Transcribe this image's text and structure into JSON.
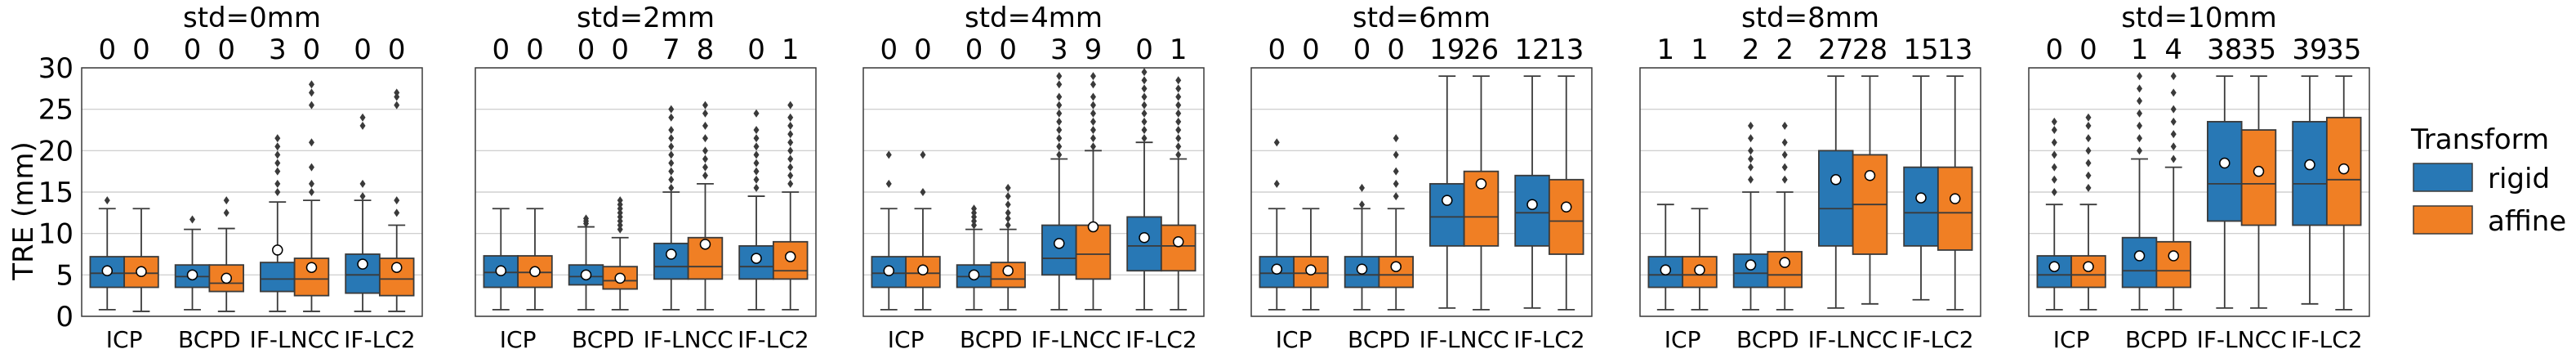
{
  "chart_data": {
    "type": "box",
    "ylabel": "TRE (mm)",
    "ylim": [
      0,
      30
    ],
    "yticks": [
      0,
      5,
      10,
      15,
      20,
      25,
      30
    ],
    "grid": "horizontal",
    "categories": [
      "ICP",
      "BCPD",
      "IF-LNCC",
      "IF-LC2"
    ],
    "legend": {
      "title": "Transform",
      "position": "right",
      "entries": [
        {
          "name": "rigid",
          "color": "#2878b5"
        },
        {
          "name": "affine",
          "color": "#f07f24"
        }
      ]
    },
    "panels": [
      {
        "title": "std=0mm",
        "outlier_counts": [
          "0",
          "0",
          "0",
          "0",
          "3",
          "0",
          "0",
          "0"
        ],
        "boxes": [
          {
            "q1": 3.5,
            "med": 5.2,
            "q3": 7.2,
            "wlo": 0.8,
            "whi": 13.0,
            "mean": 5.5,
            "fl": [
              14.0
            ]
          },
          {
            "q1": 3.5,
            "med": 5.2,
            "q3": 7.2,
            "wlo": 0.6,
            "whi": 13.0,
            "mean": 5.4,
            "fl": []
          },
          {
            "q1": 3.5,
            "med": 4.8,
            "q3": 6.2,
            "wlo": 0.8,
            "whi": 10.5,
            "mean": 5.0,
            "fl": [
              11.7
            ]
          },
          {
            "q1": 3.0,
            "med": 4.0,
            "q3": 6.2,
            "wlo": 0.6,
            "whi": 10.6,
            "mean": 4.6,
            "fl": [
              12.5,
              14.0
            ]
          },
          {
            "q1": 3.0,
            "med": 4.5,
            "q3": 6.5,
            "wlo": 0.6,
            "whi": 13.8,
            "mean": 8.0,
            "fl": [
              15.0,
              16.0,
              17.5,
              18.5,
              19.5,
              20.5,
              21.5
            ]
          },
          {
            "q1": 2.5,
            "med": 4.5,
            "q3": 7.0,
            "wlo": 0.6,
            "whi": 14.0,
            "mean": 5.9,
            "fl": [
              15.0,
              16.0,
              18.0,
              21.0,
              25.5,
              27.0,
              28.0
            ]
          },
          {
            "q1": 2.8,
            "med": 5.0,
            "q3": 7.5,
            "wlo": 0.6,
            "whi": 14.0,
            "mean": 6.3,
            "fl": [
              14.5,
              16.0,
              23.0,
              24.0
            ]
          },
          {
            "q1": 2.5,
            "med": 4.5,
            "q3": 7.0,
            "wlo": 0.6,
            "whi": 11.0,
            "mean": 5.9,
            "fl": [
              12.5,
              14.0,
              25.5,
              26.5,
              27.0
            ]
          }
        ]
      },
      {
        "title": "std=2mm",
        "outlier_counts": [
          "0",
          "0",
          "0",
          "0",
          "7",
          "8",
          "0",
          "1"
        ],
        "boxes": [
          {
            "q1": 3.5,
            "med": 5.3,
            "q3": 7.3,
            "wlo": 0.8,
            "whi": 13.0,
            "mean": 5.5,
            "fl": []
          },
          {
            "q1": 3.5,
            "med": 5.3,
            "q3": 7.3,
            "wlo": 0.8,
            "whi": 13.0,
            "mean": 5.4,
            "fl": []
          },
          {
            "q1": 3.8,
            "med": 4.8,
            "q3": 6.2,
            "wlo": 0.8,
            "whi": 10.8,
            "mean": 5.0,
            "fl": [
              11.2,
              11.5,
              11.8
            ]
          },
          {
            "q1": 3.3,
            "med": 4.3,
            "q3": 6.0,
            "wlo": 0.8,
            "whi": 9.5,
            "mean": 4.6,
            "fl": [
              10.5,
              11.0,
              11.5,
              12.0,
              12.5,
              13.0,
              13.5,
              14.0
            ]
          },
          {
            "q1": 4.5,
            "med": 6.0,
            "q3": 8.8,
            "wlo": 0.8,
            "whi": 15.0,
            "mean": 7.5,
            "fl": [
              15.5,
              16.5,
              17.5,
              18.5,
              19.5,
              20.5,
              21.5,
              22.5,
              24.0,
              25.0
            ]
          },
          {
            "q1": 4.5,
            "med": 6.0,
            "q3": 9.5,
            "wlo": 0.8,
            "whi": 16.0,
            "mean": 8.7,
            "fl": [
              17.0,
              18.0,
              19.0,
              20.0,
              21.5,
              23.0,
              24.5,
              25.5
            ]
          },
          {
            "q1": 4.5,
            "med": 6.0,
            "q3": 8.5,
            "wlo": 0.8,
            "whi": 14.5,
            "mean": 7.0,
            "fl": [
              15.5,
              16.5,
              17.5,
              18.5,
              19.5,
              20.5,
              21.5,
              22.5,
              24.5
            ]
          },
          {
            "q1": 4.5,
            "med": 5.5,
            "q3": 9.0,
            "wlo": 0.8,
            "whi": 15.0,
            "mean": 7.2,
            "fl": [
              16.0,
              17.0,
              18.0,
              19.0,
              20.0,
              21.0,
              22.0,
              23.0,
              24.0,
              25.5
            ]
          }
        ]
      },
      {
        "title": "std=4mm",
        "outlier_counts": [
          "0",
          "0",
          "0",
          "0",
          "3",
          "9",
          "0",
          "1"
        ],
        "boxes": [
          {
            "q1": 3.5,
            "med": 5.2,
            "q3": 7.2,
            "wlo": 0.8,
            "whi": 13.0,
            "mean": 5.5,
            "fl": [
              16.0,
              19.5
            ]
          },
          {
            "q1": 3.5,
            "med": 5.2,
            "q3": 7.2,
            "wlo": 0.8,
            "whi": 13.0,
            "mean": 5.6,
            "fl": [
              15.0,
              19.5
            ]
          },
          {
            "q1": 3.5,
            "med": 4.8,
            "q3": 6.2,
            "wlo": 0.8,
            "whi": 10.5,
            "mean": 5.0,
            "fl": [
              11.0,
              11.5,
              12.0,
              12.5,
              13.0
            ]
          },
          {
            "q1": 3.5,
            "med": 4.5,
            "q3": 6.5,
            "wlo": 0.8,
            "whi": 10.5,
            "mean": 5.5,
            "fl": [
              11.0,
              11.8,
              12.5,
              13.5,
              14.5,
              15.5
            ]
          },
          {
            "q1": 5.0,
            "med": 7.0,
            "q3": 11.0,
            "wlo": 0.8,
            "whi": 19.0,
            "mean": 8.8,
            "fl": [
              19.5,
              20.5,
              21.5,
              22.5,
              23.5,
              24.5,
              25.5,
              26.5,
              28.0,
              29.0
            ]
          },
          {
            "q1": 4.5,
            "med": 7.5,
            "q3": 11.0,
            "wlo": 0.8,
            "whi": 20.0,
            "mean": 10.8,
            "fl": [
              20.5,
              21.5,
              22.5,
              23.5,
              24.5,
              25.5,
              26.5,
              28.0,
              29.0
            ]
          },
          {
            "q1": 5.5,
            "med": 8.5,
            "q3": 12.0,
            "wlo": 0.8,
            "whi": 21.0,
            "mean": 9.5,
            "fl": [
              21.5,
              22.5,
              23.5,
              24.5,
              25.5,
              26.5,
              27.5,
              28.5,
              29.5
            ]
          },
          {
            "q1": 5.5,
            "med": 8.5,
            "q3": 11.0,
            "wlo": 0.8,
            "whi": 19.0,
            "mean": 9.0,
            "fl": [
              19.5,
              20.5,
              21.5,
              22.5,
              23.5,
              24.5,
              25.5,
              26.5,
              27.5,
              28.5
            ]
          }
        ]
      },
      {
        "title": "std=6mm",
        "outlier_counts": [
          "0",
          "0",
          "0",
          "0",
          "19",
          "26",
          "12",
          "13"
        ],
        "boxes": [
          {
            "q1": 3.5,
            "med": 5.2,
            "q3": 7.2,
            "wlo": 0.8,
            "whi": 13.0,
            "mean": 5.7,
            "fl": [
              16.0,
              21.0
            ]
          },
          {
            "q1": 3.5,
            "med": 5.2,
            "q3": 7.2,
            "wlo": 0.8,
            "whi": 13.0,
            "mean": 5.6,
            "fl": []
          },
          {
            "q1": 3.5,
            "med": 5.0,
            "q3": 7.2,
            "wlo": 0.8,
            "whi": 13.0,
            "mean": 5.7,
            "fl": [
              13.5,
              15.5
            ]
          },
          {
            "q1": 3.5,
            "med": 5.0,
            "q3": 7.2,
            "wlo": 0.8,
            "whi": 13.0,
            "mean": 6.0,
            "fl": [
              14.5,
              16.0,
              17.5,
              19.5,
              21.5
            ]
          },
          {
            "q1": 8.5,
            "med": 12.0,
            "q3": 16.0,
            "wlo": 1.0,
            "whi": 29.0,
            "mean": 14.0,
            "fl": []
          },
          {
            "q1": 8.5,
            "med": 12.0,
            "q3": 17.5,
            "wlo": 0.8,
            "whi": 29.0,
            "mean": 16.0,
            "fl": []
          },
          {
            "q1": 8.5,
            "med": 12.5,
            "q3": 17.0,
            "wlo": 1.0,
            "whi": 29.0,
            "mean": 13.5,
            "fl": []
          },
          {
            "q1": 7.5,
            "med": 11.5,
            "q3": 16.5,
            "wlo": 0.8,
            "whi": 29.0,
            "mean": 13.2,
            "fl": []
          }
        ]
      },
      {
        "title": "std=8mm",
        "outlier_counts": [
          "1",
          "1",
          "2",
          "2",
          "27",
          "28",
          "15",
          "13"
        ],
        "boxes": [
          {
            "q1": 3.5,
            "med": 5.0,
            "q3": 7.2,
            "wlo": 0.8,
            "whi": 13.5,
            "mean": 5.6,
            "fl": []
          },
          {
            "q1": 3.5,
            "med": 5.0,
            "q3": 7.2,
            "wlo": 0.8,
            "whi": 13.0,
            "mean": 5.6,
            "fl": []
          },
          {
            "q1": 3.5,
            "med": 5.2,
            "q3": 7.5,
            "wlo": 0.8,
            "whi": 15.0,
            "mean": 6.2,
            "fl": [
              16.5,
              18.0,
              19.0,
              20.0,
              21.5,
              23.0
            ]
          },
          {
            "q1": 3.5,
            "med": 5.0,
            "q3": 7.8,
            "wlo": 0.8,
            "whi": 15.0,
            "mean": 6.5,
            "fl": [
              16.5,
              18.0,
              19.5,
              21.0,
              23.0
            ]
          },
          {
            "q1": 8.5,
            "med": 13.0,
            "q3": 20.0,
            "wlo": 1.0,
            "whi": 29.0,
            "mean": 16.5,
            "fl": []
          },
          {
            "q1": 7.5,
            "med": 13.5,
            "q3": 19.5,
            "wlo": 1.5,
            "whi": 29.0,
            "mean": 17.0,
            "fl": []
          },
          {
            "q1": 8.5,
            "med": 12.5,
            "q3": 18.0,
            "wlo": 2.0,
            "whi": 29.0,
            "mean": 14.3,
            "fl": []
          },
          {
            "q1": 8.0,
            "med": 12.5,
            "q3": 18.0,
            "wlo": 0.8,
            "whi": 29.0,
            "mean": 14.2,
            "fl": []
          }
        ]
      },
      {
        "title": "std=10mm",
        "outlier_counts": [
          "0",
          "0",
          "1",
          "4",
          "38",
          "35",
          "39",
          "35"
        ],
        "boxes": [
          {
            "q1": 3.5,
            "med": 5.0,
            "q3": 7.3,
            "wlo": 0.8,
            "whi": 13.5,
            "mean": 6.0,
            "fl": [
              15.0,
              16.5,
              18.0,
              19.5,
              21.0,
              22.5,
              23.5
            ]
          },
          {
            "q1": 3.5,
            "med": 5.0,
            "q3": 7.3,
            "wlo": 0.8,
            "whi": 13.5,
            "mean": 6.0,
            "fl": [
              15.5,
              17.0,
              18.5,
              20.0,
              21.5,
              23.0,
              24.0
            ]
          },
          {
            "q1": 3.5,
            "med": 5.5,
            "q3": 9.5,
            "wlo": 0.8,
            "whi": 19.0,
            "mean": 7.3,
            "fl": [
              20.0,
              21.5,
              23.0,
              24.5,
              26.0,
              27.5,
              29.0
            ]
          },
          {
            "q1": 3.5,
            "med": 5.5,
            "q3": 9.0,
            "wlo": 0.8,
            "whi": 18.0,
            "mean": 7.3,
            "fl": [
              19.0,
              20.5,
              22.0,
              23.5,
              25.0,
              27.0,
              29.0
            ]
          },
          {
            "q1": 11.5,
            "med": 16.0,
            "q3": 23.5,
            "wlo": 1.0,
            "whi": 29.0,
            "mean": 18.5,
            "fl": []
          },
          {
            "q1": 11.0,
            "med": 16.0,
            "q3": 22.5,
            "wlo": 1.0,
            "whi": 29.0,
            "mean": 17.5,
            "fl": []
          },
          {
            "q1": 11.0,
            "med": 16.0,
            "q3": 23.5,
            "wlo": 1.5,
            "whi": 29.0,
            "mean": 18.3,
            "fl": []
          },
          {
            "q1": 11.0,
            "med": 16.5,
            "q3": 24.0,
            "wlo": 0.8,
            "whi": 29.0,
            "mean": 17.8,
            "fl": []
          }
        ]
      }
    ]
  }
}
